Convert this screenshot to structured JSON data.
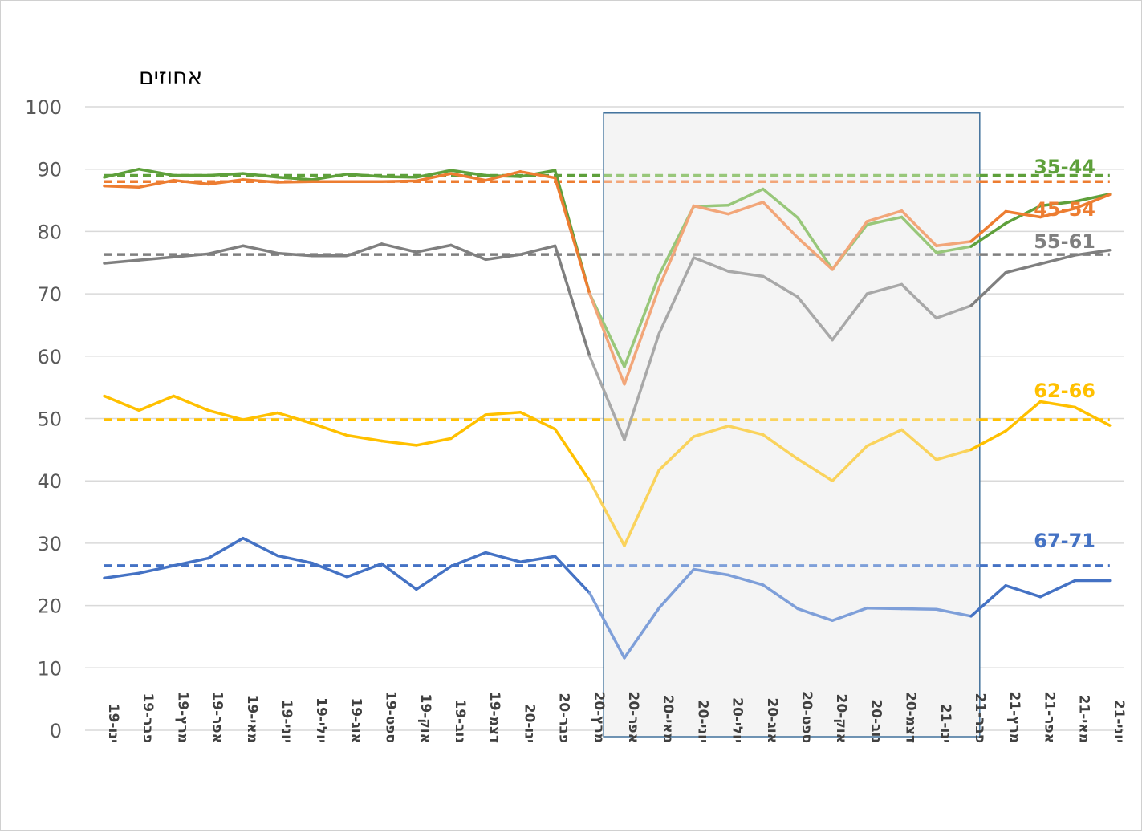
{
  "chart_data": {
    "type": "line",
    "ylabel": "אחוזים",
    "ylim": [
      0,
      100
    ],
    "yticks": [
      0,
      10,
      20,
      30,
      40,
      50,
      60,
      70,
      80,
      90,
      100
    ],
    "grid": true,
    "categories": [
      "ינו-19",
      "פבר-19",
      "מרץ-19",
      "אפר-19",
      "מאי-19",
      "יוני-19",
      "יולי-19",
      "אוג-19",
      "ספט-19",
      "אוק-19",
      "נוב-19",
      "דצמ-19",
      "ינו-20",
      "פבר-20",
      "מרץ-20",
      "אפר-20",
      "מאי-20",
      "יוני-20",
      "יולי-20",
      "אוג-20",
      "ספט-20",
      "אוק-20",
      "נוב-20",
      "דצמ-20",
      "ינו-21",
      "פבר-21",
      "מרץ-21",
      "אפר-21",
      "מאי-21",
      "יוני-21"
    ],
    "highlight": {
      "from_category": "מרץ-20",
      "to_category": "פבר-21"
    },
    "series": [
      {
        "name": "35-44",
        "color": "#5ea03b",
        "light_color": "#98c77a",
        "baseline": 89.0,
        "values": [
          88.7,
          90.0,
          89.0,
          89.0,
          89.3,
          88.7,
          88.3,
          89.2,
          88.8,
          88.7,
          89.8,
          89.0,
          88.8,
          89.8,
          70.0,
          58.3,
          73.0,
          84.0,
          84.2,
          86.8,
          82.2,
          73.9,
          81.1,
          82.3,
          76.6,
          77.6,
          81.3,
          84.1,
          84.8,
          86.0
        ]
      },
      {
        "name": "45-54",
        "color": "#ed7d31",
        "light_color": "#f2a679",
        "baseline": 88.0,
        "values": [
          87.3,
          87.1,
          88.2,
          87.6,
          88.3,
          87.9,
          88.0,
          88.0,
          88.0,
          88.1,
          89.3,
          88.2,
          89.6,
          88.6,
          70.0,
          55.5,
          71.0,
          84.1,
          82.8,
          84.7,
          79.0,
          73.9,
          81.6,
          83.3,
          77.7,
          78.4,
          83.2,
          82.3,
          83.7,
          85.9
        ]
      },
      {
        "name": "55-61",
        "color": "#7f7f7f",
        "light_color": "#a8a8a8",
        "baseline": 76.3,
        "values": [
          74.9,
          75.4,
          75.9,
          76.4,
          77.7,
          76.5,
          76.1,
          76.1,
          78.0,
          76.7,
          77.8,
          75.5,
          76.3,
          77.7,
          60.0,
          46.6,
          63.6,
          75.8,
          73.6,
          72.8,
          69.5,
          62.6,
          70.0,
          71.5,
          66.1,
          68.1,
          73.4,
          74.8,
          76.2,
          77.0
        ]
      },
      {
        "name": "62-66",
        "color": "#ffc000",
        "light_color": "#fad35c",
        "baseline": 49.8,
        "values": [
          53.6,
          51.3,
          53.6,
          51.3,
          49.8,
          50.9,
          49.2,
          47.3,
          46.4,
          45.7,
          46.8,
          50.6,
          51.0,
          48.3,
          40.0,
          29.6,
          41.7,
          47.1,
          48.8,
          47.4,
          43.5,
          40.0,
          45.6,
          48.2,
          43.4,
          45.0,
          48.0,
          52.7,
          51.8,
          48.9
        ]
      },
      {
        "name": "67-71",
        "color": "#4472c4",
        "light_color": "#7e9fd9",
        "baseline": 26.4,
        "values": [
          24.4,
          25.2,
          26.4,
          27.6,
          30.8,
          28.0,
          26.8,
          24.6,
          26.7,
          22.6,
          26.3,
          28.5,
          27.0,
          27.9,
          22.0,
          11.6,
          19.6,
          25.8,
          24.9,
          23.3,
          19.5,
          17.6,
          19.6,
          19.5,
          19.4,
          18.3,
          23.2,
          21.4,
          24.0,
          24.0
        ]
      }
    ]
  }
}
